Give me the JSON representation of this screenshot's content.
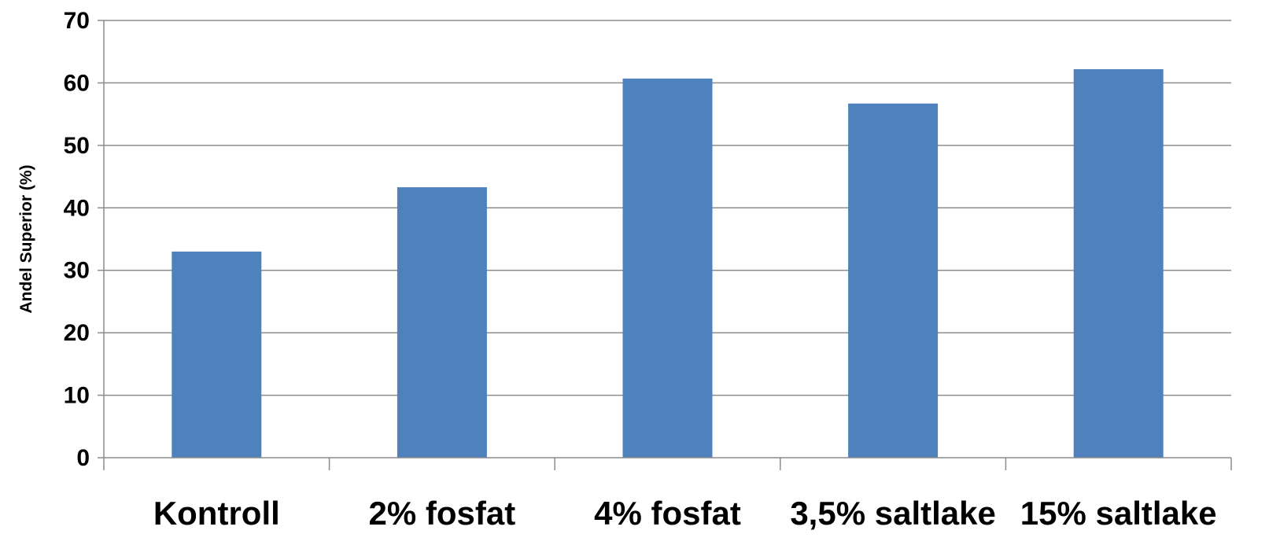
{
  "chart_data": {
    "type": "bar",
    "categories": [
      "Kontroll",
      "2% fosfat",
      "4% fosfat",
      "3,5% saltlake",
      "15% saltlake"
    ],
    "values": [
      33,
      43.3,
      60.7,
      56.7,
      62.2
    ],
    "title": "",
    "xlabel": "",
    "ylabel": "Andel  Superior (%)",
    "ylim": [
      0,
      70
    ],
    "yticks": [
      0,
      10,
      20,
      30,
      40,
      50,
      60,
      70
    ],
    "grid": true,
    "legend": "none",
    "colors": {
      "bar": "#4f81bd",
      "grid": "#8c8c8c"
    }
  }
}
